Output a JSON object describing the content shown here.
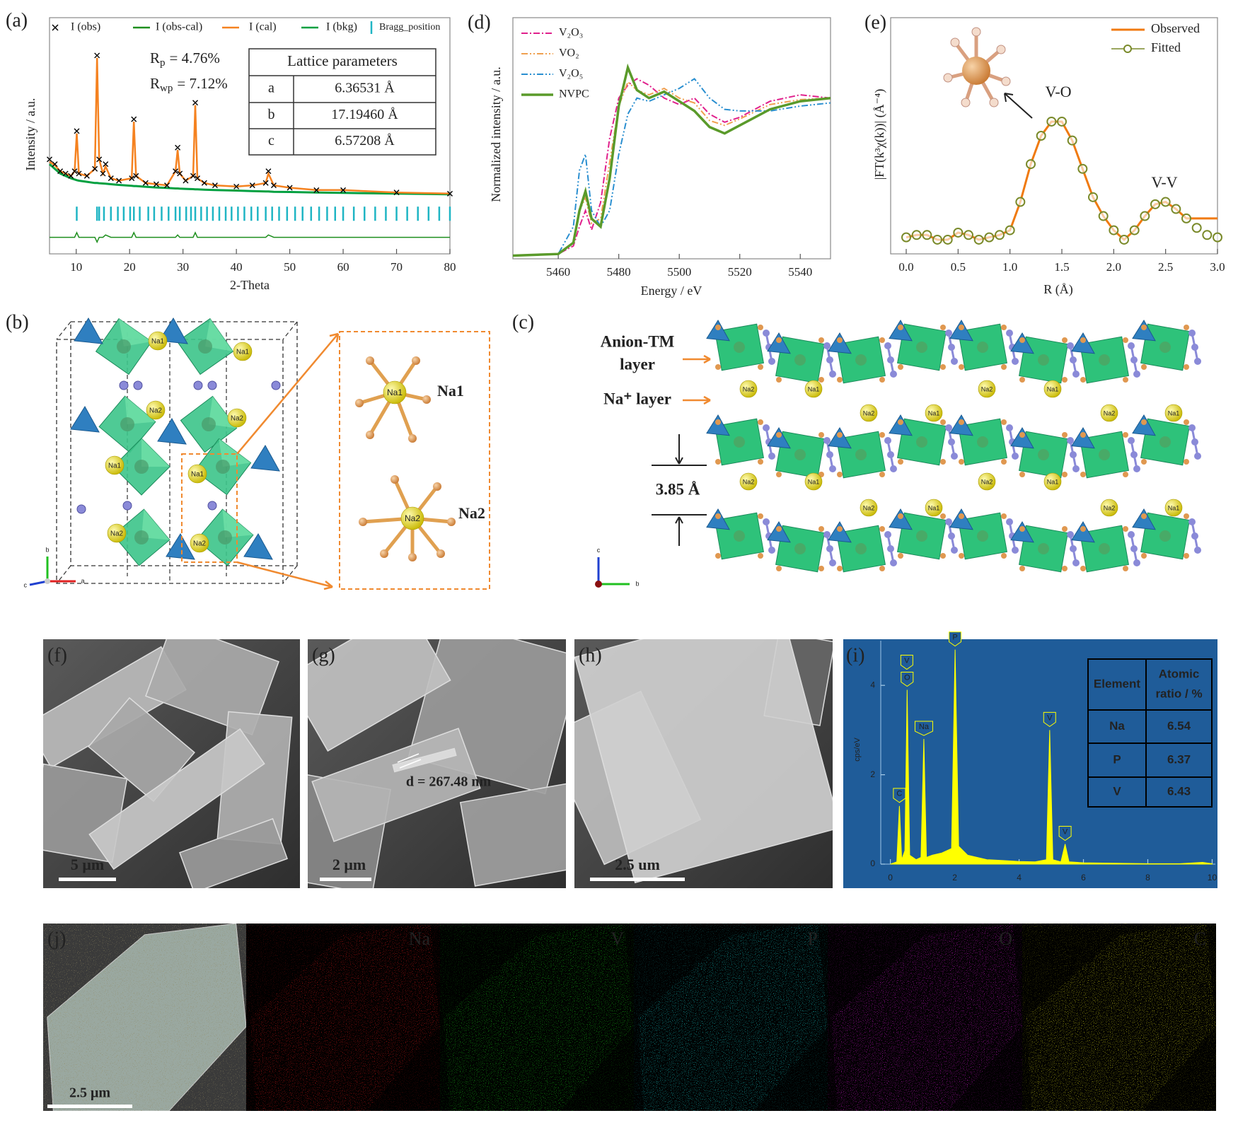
{
  "chart_data": [
    {
      "type": "xrd",
      "panel_label": "(a)",
      "xlabel": "2-Theta",
      "ylabel": "Intensity / a.u.",
      "xlim": [
        5,
        80
      ],
      "xticks": [
        10,
        20,
        30,
        40,
        50,
        60,
        70,
        80
      ],
      "ylim": [
        0,
        100
      ],
      "x": [
        5,
        6,
        7,
        8,
        9,
        9.7,
        10.1,
        10.5,
        12,
        13.5,
        13.9,
        14.3,
        15,
        15.5,
        16.5,
        18,
        20.4,
        20.8,
        21.2,
        23,
        25,
        27,
        28.6,
        29,
        29.4,
        30.5,
        31.9,
        32.3,
        32.7,
        34,
        36,
        40,
        43,
        45.5,
        46,
        47,
        50,
        55,
        60,
        70,
        80
      ],
      "series": [
        {
          "name": "I (obs)",
          "color": "#000000",
          "values": [
            40,
            38,
            35,
            34,
            33,
            35,
            52,
            34,
            33,
            36,
            84,
            40,
            34,
            38,
            32,
            31,
            32,
            57,
            33,
            30,
            29.5,
            29,
            35,
            45,
            34,
            31,
            33,
            64,
            32,
            30,
            29,
            28.5,
            29,
            30,
            35,
            29,
            28,
            27,
            27,
            26,
            25.5
          ]
        },
        {
          "name": "I (obs-cal)",
          "color": "#1e8f1e",
          "values": [
            7,
            7,
            7,
            7,
            7,
            7,
            9,
            7,
            7,
            7,
            5,
            7,
            7,
            8,
            7,
            7,
            7,
            9,
            7,
            7,
            7,
            7,
            7,
            8,
            7,
            7,
            7,
            9,
            7,
            7,
            7,
            7,
            7,
            7,
            8,
            7,
            7,
            7,
            7,
            7,
            7
          ]
        },
        {
          "name": "I (cal)",
          "color": "#f58220",
          "values": [
            39,
            37.5,
            35,
            34,
            33,
            35,
            51,
            34,
            33,
            36,
            83,
            40,
            34,
            37,
            32,
            31,
            32,
            56,
            33,
            30,
            29.5,
            29,
            35,
            44,
            34,
            31,
            33,
            63,
            32,
            30,
            29,
            28.5,
            29,
            30,
            34,
            29,
            28,
            27,
            27,
            26,
            25.5
          ]
        },
        {
          "name": "I (bkg)",
          "color": "#00a040",
          "values": [
            38,
            36,
            34,
            33,
            32,
            31.5,
            31.2,
            31,
            30.5,
            30,
            30,
            29.9,
            29.8,
            29.7,
            29.5,
            29.2,
            28.8,
            28.7,
            28.7,
            28.4,
            28.1,
            27.9,
            27.7,
            27.7,
            27.6,
            27.5,
            27.4,
            27.3,
            27.3,
            27.2,
            27,
            26.8,
            26.6,
            26.4,
            26.4,
            26.3,
            26.2,
            26,
            25.8,
            25.5,
            25.2
          ]
        }
      ],
      "bragg": {
        "name": "Bragg_position",
        "color": "#1fb5c4",
        "x": [
          10.1,
          13.9,
          14.3,
          15.2,
          16.5,
          17.8,
          18.9,
          20.1,
          20.8,
          21.9,
          23.5,
          24.6,
          26.0,
          27.3,
          28.6,
          29.4,
          30.6,
          31.5,
          32.3,
          33.4,
          34.5,
          35.6,
          36.8,
          38.0,
          39.1,
          40.3,
          41.5,
          42.8,
          44.0,
          45.5,
          46.7,
          48.0,
          49.5,
          51.0,
          52.4,
          54.0,
          55.5,
          57,
          58.5,
          60,
          62,
          64,
          66,
          68,
          70,
          72,
          74,
          76,
          78,
          80
        ]
      },
      "stats": [
        {
          "symbol": "R",
          "subscript": "p",
          "text": "= 4.76%"
        },
        {
          "symbol": "R",
          "subscript": "wp",
          "text": "= 7.12%"
        }
      ],
      "table": {
        "title": "Lattice parameters",
        "rows": [
          [
            "a",
            "6.36531 Å"
          ],
          [
            "b",
            "17.19460 Å"
          ],
          [
            "c",
            "6.57208 Å"
          ]
        ]
      }
    },
    {
      "type": "line",
      "panel_label": "(d)",
      "xlabel": "Energy / eV",
      "ylabel": "Normalized intensity / a.u.",
      "xlim": [
        5445,
        5550
      ],
      "xticks": [
        5460,
        5480,
        5500,
        5520,
        5540
      ],
      "ylim": [
        0,
        1.5
      ],
      "x": [
        5445,
        5460,
        5465,
        5467,
        5469,
        5471,
        5474,
        5477,
        5480,
        5483,
        5486,
        5490,
        5495,
        5500,
        5505,
        5510,
        5515,
        5520,
        5530,
        5540,
        5550
      ],
      "series": [
        {
          "name": "V₂O₃",
          "color": "#e0208c",
          "dash": "dashdot",
          "width": 2,
          "values": [
            0.02,
            0.03,
            0.08,
            0.2,
            0.3,
            0.18,
            0.35,
            0.75,
            1.0,
            1.08,
            1.12,
            1.08,
            1.0,
            0.96,
            1.0,
            0.9,
            0.85,
            0.88,
            0.98,
            1.02,
            1.0
          ]
        },
        {
          "name": "VO₂",
          "color": "#f0a050",
          "dash": "dashdotdot",
          "width": 2,
          "values": [
            0.02,
            0.03,
            0.1,
            0.3,
            0.38,
            0.22,
            0.25,
            0.6,
            0.95,
            1.1,
            1.05,
            1.02,
            1.06,
            1.0,
            0.97,
            0.86,
            0.83,
            0.87,
            0.96,
            0.99,
            1.0
          ]
        },
        {
          "name": "V₂O₅",
          "color": "#2a8fd0",
          "dash": "dashdotdot",
          "width": 2,
          "values": [
            0.02,
            0.03,
            0.2,
            0.55,
            0.65,
            0.3,
            0.2,
            0.3,
            0.65,
            0.9,
            1.0,
            0.98,
            1.02,
            1.06,
            1.12,
            1.0,
            0.93,
            0.92,
            0.92,
            0.95,
            0.97
          ]
        },
        {
          "name": "NVPC",
          "color": "#5a9a2a",
          "dash": "solid",
          "width": 3.5,
          "values": [
            0.02,
            0.03,
            0.1,
            0.3,
            0.42,
            0.25,
            0.2,
            0.5,
            0.95,
            1.19,
            1.05,
            1.0,
            1.04,
            0.98,
            0.92,
            0.82,
            0.78,
            0.83,
            0.93,
            0.98,
            1.0
          ]
        }
      ]
    },
    {
      "type": "exafs",
      "panel_label": "(e)",
      "xlabel": "R (Å)",
      "ylabel": "|FT(k³χ(k))| (Å⁻⁴)",
      "xlim": [
        -0.15,
        3.0
      ],
      "xticks": [
        {
          "value": 0,
          "label": "0.0"
        },
        0.5,
        {
          "value": 1,
          "label": "1.0"
        },
        1.5,
        {
          "value": 2,
          "label": "2.0"
        },
        2.5,
        {
          "value": 3,
          "label": "3.0"
        }
      ],
      "ylim": [
        0,
        100
      ],
      "x": [
        0,
        0.1,
        0.2,
        0.3,
        0.4,
        0.5,
        0.6,
        0.7,
        0.8,
        0.9,
        1.0,
        1.1,
        1.2,
        1.3,
        1.4,
        1.5,
        1.6,
        1.7,
        1.8,
        1.9,
        2.0,
        2.1,
        2.2,
        2.3,
        2.4,
        2.5,
        2.6,
        2.7,
        2.8,
        2.9,
        3.0
      ],
      "series": [
        {
          "name": "Observed",
          "color": "#f07a10",
          "style": "line",
          "values": [
            7,
            8,
            8,
            6,
            6,
            9,
            8,
            6,
            7,
            8,
            10,
            22,
            38,
            50,
            56,
            56,
            48,
            36,
            24,
            16,
            10,
            6,
            10,
            16,
            21,
            22,
            19,
            15,
            15,
            15,
            15
          ]
        },
        {
          "name": "Fitted",
          "color": "#7a8a2a",
          "style": "circles",
          "values": [
            7,
            8,
            8,
            6,
            6,
            9,
            8,
            6,
            7,
            8,
            10,
            22,
            38,
            50,
            56,
            56,
            48,
            36,
            24,
            16,
            10,
            6,
            10,
            16,
            21,
            22,
            19,
            15,
            11,
            8,
            7
          ]
        }
      ],
      "annotations": [
        "V-O",
        "V-V"
      ]
    },
    {
      "type": "eds",
      "panel_label": "(i)",
      "ylabel": "cps/eV",
      "xlim": [
        -0.3,
        10.1
      ],
      "xticks": [
        0,
        2,
        4,
        6,
        8,
        10
      ],
      "ylim": [
        0,
        5
      ],
      "yticks": [
        0,
        2,
        4
      ],
      "color": "#ffff00",
      "background": "#1f5c99",
      "x": [
        0,
        0.2,
        0.28,
        0.35,
        0.45,
        0.52,
        0.6,
        0.8,
        0.95,
        1.04,
        1.12,
        1.3,
        1.6,
        1.9,
        2.01,
        2.12,
        2.4,
        3,
        3.5,
        4,
        4.5,
        4.85,
        4.95,
        5.05,
        5.3,
        5.43,
        5.55,
        6,
        7,
        8,
        9,
        9.7,
        10
      ],
      "values": [
        0,
        0.05,
        1.3,
        0.1,
        0.3,
        3.9,
        0.2,
        0.1,
        0.15,
        2.8,
        0.15,
        0.2,
        0.25,
        0.35,
        4.8,
        0.4,
        0.2,
        0.1,
        0.08,
        0.06,
        0.05,
        0.1,
        3.0,
        0.1,
        0.05,
        0.45,
        0.05,
        0.03,
        0.02,
        0.01,
        0.01,
        0.04,
        0.01
      ],
      "peak_labels": [
        {
          "label": "C",
          "x": 0.28
        },
        {
          "label": "O",
          "x": 0.52
        },
        {
          "label": "V",
          "x": 0.51
        },
        {
          "label": "Na",
          "x": 1.04
        },
        {
          "label": "P",
          "x": 2.01
        },
        {
          "label": "V",
          "x": 4.95
        },
        {
          "label": "V",
          "x": 5.43
        }
      ],
      "table": {
        "header": [
          "Element",
          [
            "Atomic",
            "ratio / %"
          ]
        ],
        "rows": [
          [
            "Na",
            "6.54"
          ],
          [
            "P",
            "6.37"
          ],
          [
            "V",
            "6.43"
          ]
        ]
      }
    }
  ],
  "structure_b": {
    "panel_label": "(b)",
    "sites": [
      "Na1",
      "Na1",
      "Na2",
      "Na2",
      "Na1",
      "Na1",
      "Na2",
      "Na2"
    ],
    "zoom_labels": [
      "Na1",
      "Na2"
    ],
    "axes": [
      "b",
      "c",
      "a"
    ]
  },
  "structure_c": {
    "panel_label": "(c)",
    "anion_tm_layer": [
      "Anion-TM",
      "layer"
    ],
    "na_layer": "Na⁺ layer",
    "spacing": "3.85 Å",
    "na_labels": [
      [
        "Na2",
        "Na1",
        "Na2",
        "Na1",
        "Na2",
        "Na1",
        "Na2",
        "Na1"
      ],
      [
        "Na2",
        "Na1",
        "Na2",
        "Na1",
        "Na2",
        "Na1",
        "Na2",
        "Na1"
      ]
    ],
    "axes": [
      "c",
      "b"
    ]
  },
  "sem": [
    {
      "panel_label": "(f)",
      "scale": "5 μm"
    },
    {
      "panel_label": "(g)",
      "scale": "2 μm",
      "annotation": "d = 267.48 nm"
    },
    {
      "panel_label": "(h)",
      "scale": "2.5 um"
    }
  ],
  "mapping": {
    "panel_label": "(j)",
    "scale": "2.5 μm",
    "elements": [
      {
        "name": "Na",
        "color": "#d01818"
      },
      {
        "name": "V",
        "color": "#18c018"
      },
      {
        "name": "P",
        "color": "#18c8c8"
      },
      {
        "name": "O",
        "color": "#d018d0"
      },
      {
        "name": "C",
        "color": "#d0d018"
      }
    ]
  }
}
